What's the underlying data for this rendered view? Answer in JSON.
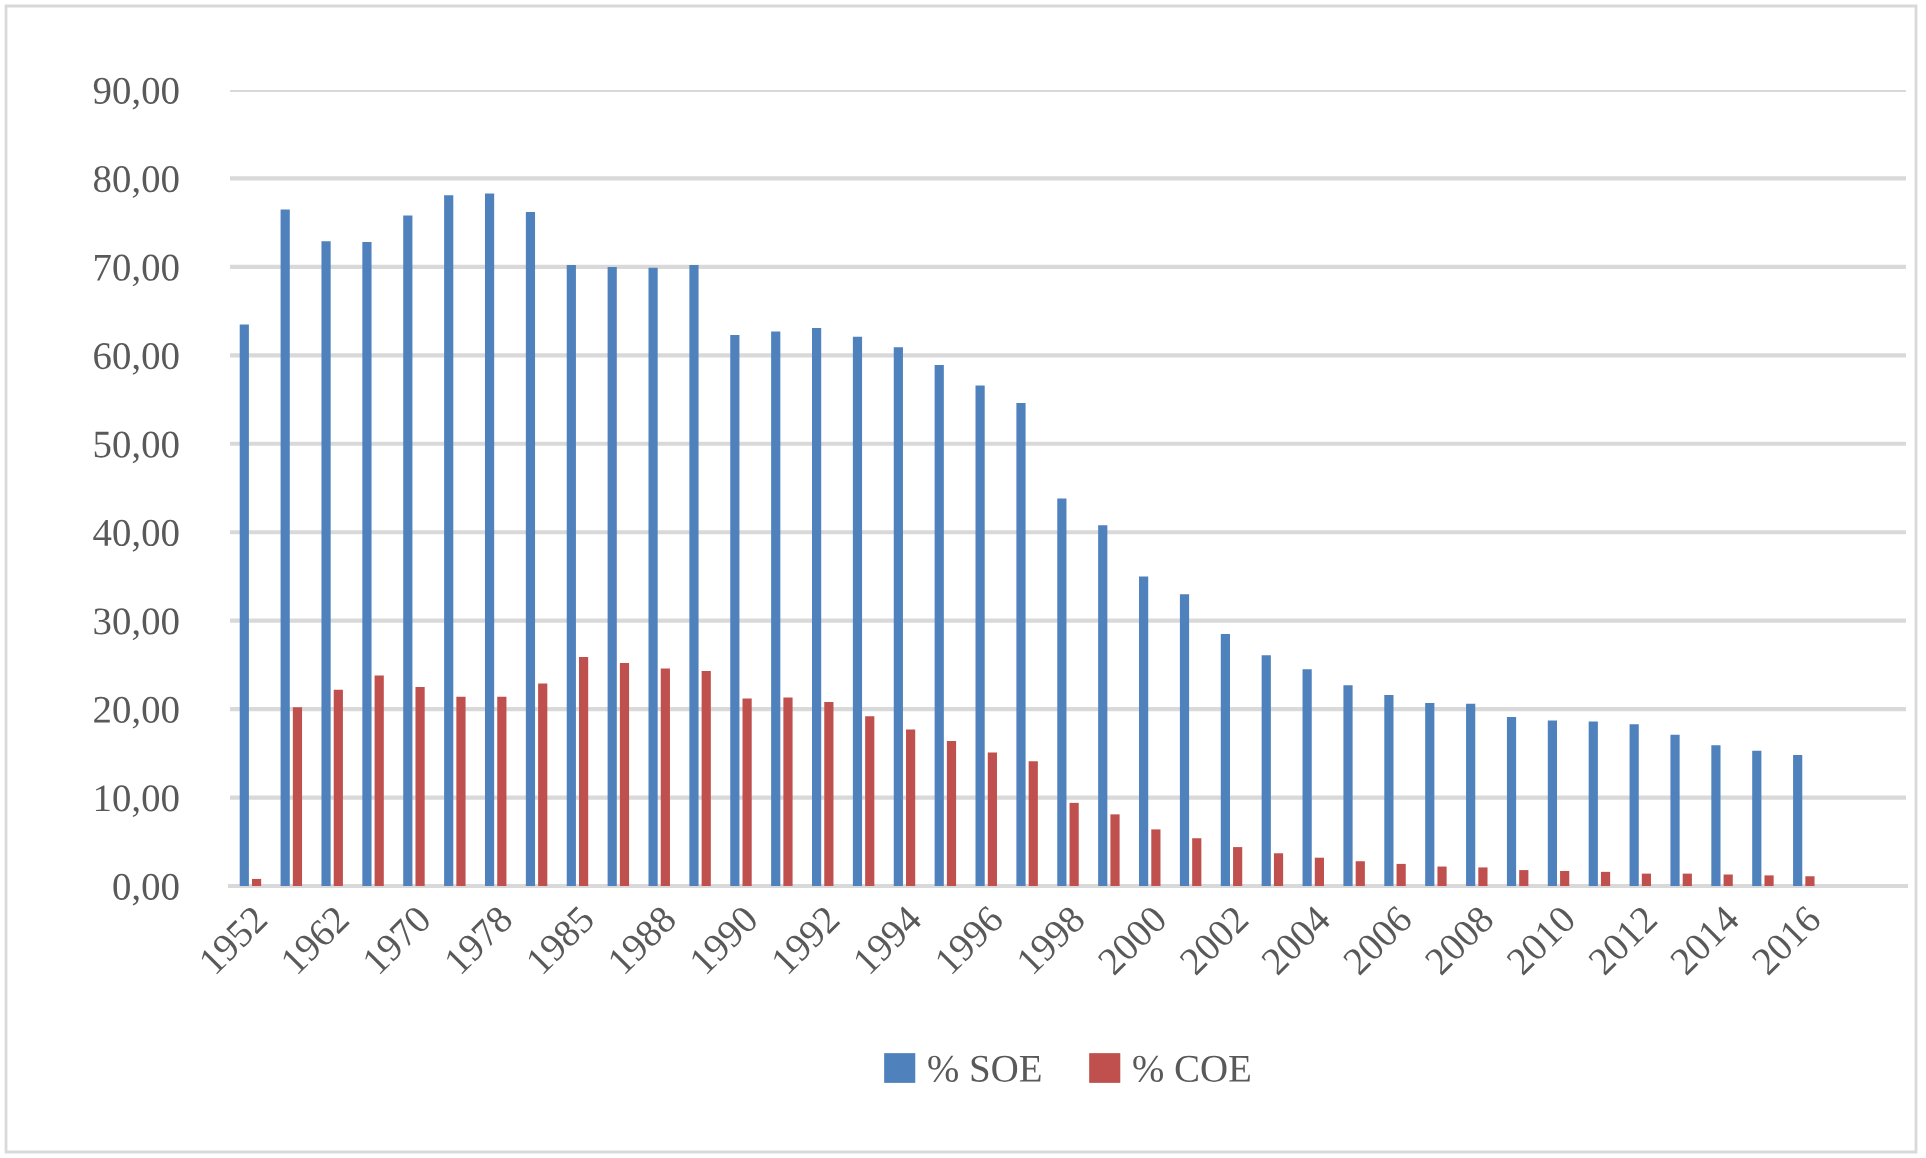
{
  "chart_data": {
    "type": "bar",
    "categories": [
      "1952",
      null,
      "1962",
      null,
      "1970",
      null,
      "1978",
      null,
      "1985",
      null,
      "1988",
      null,
      "1990",
      null,
      "1992",
      null,
      "1994",
      null,
      "1996",
      null,
      "1998",
      null,
      "2000",
      null,
      "2002",
      null,
      "2004",
      null,
      "2006",
      null,
      "2008",
      null,
      "2010",
      null,
      "2012",
      null,
      "2014",
      null,
      "2016",
      null,
      null
    ],
    "series": [
      {
        "name": "% SOE",
        "color": "#4f81bd",
        "values": [
          63.5,
          76.5,
          72.9,
          72.8,
          75.8,
          78.1,
          78.3,
          76.2,
          70.2,
          70.0,
          69.9,
          70.2,
          62.3,
          62.7,
          63.1,
          62.1,
          60.9,
          58.9,
          56.6,
          54.6,
          43.8,
          40.8,
          35.0,
          33.0,
          28.5,
          26.1,
          24.5,
          22.7,
          21.6,
          20.7,
          20.6,
          19.1,
          18.7,
          18.6,
          18.3,
          17.1,
          15.9,
          15.3,
          14.8,
          null,
          null
        ]
      },
      {
        "name": "% COE",
        "color": "#c0504d",
        "values": [
          0.8,
          20.2,
          22.2,
          23.8,
          22.5,
          21.4,
          21.4,
          22.9,
          25.9,
          25.2,
          24.6,
          24.3,
          21.2,
          21.3,
          20.8,
          19.2,
          17.7,
          16.4,
          15.1,
          14.1,
          9.4,
          8.1,
          6.4,
          5.4,
          4.4,
          3.7,
          3.2,
          2.8,
          2.5,
          2.2,
          2.1,
          1.8,
          1.7,
          1.6,
          1.4,
          1.4,
          1.3,
          1.2,
          1.1,
          null,
          null
        ]
      }
    ],
    "ylim": [
      0,
      90
    ],
    "yticks": [
      {
        "value": 0,
        "label": "0,00"
      },
      {
        "value": 10,
        "label": "10,00"
      },
      {
        "value": 20,
        "label": "20,00"
      },
      {
        "value": 30,
        "label": "30,00"
      },
      {
        "value": 40,
        "label": "40,00"
      },
      {
        "value": 50,
        "label": "50,00"
      },
      {
        "value": 60,
        "label": "60,00"
      },
      {
        "value": 70,
        "label": "70,00"
      },
      {
        "value": 80,
        "label": "80,00"
      },
      {
        "value": 90,
        "label": "90,00"
      }
    ],
    "grid": "y",
    "legend": "bottom"
  }
}
